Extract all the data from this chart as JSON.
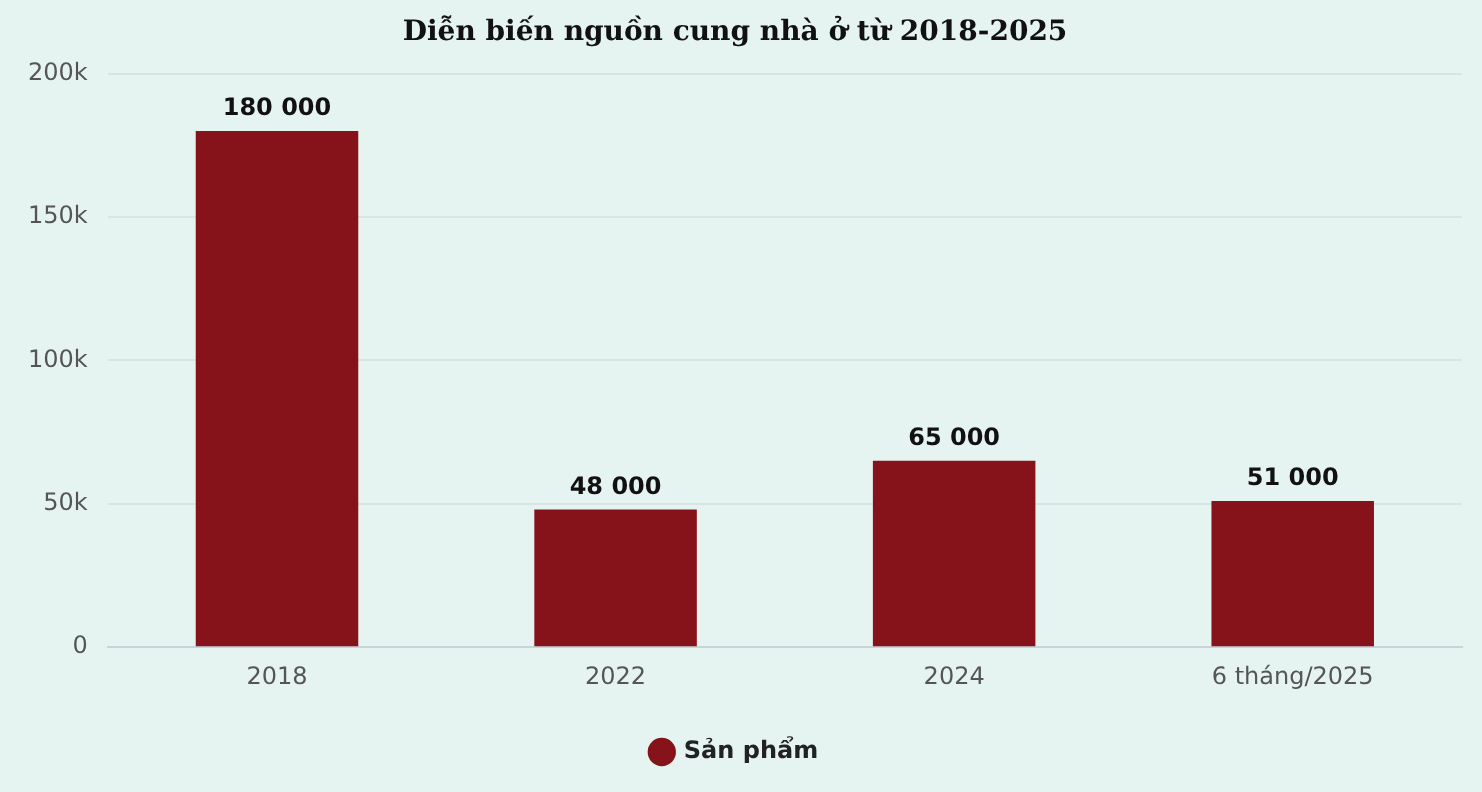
{
  "chart_data": {
    "type": "bar",
    "title": "Diễn biến nguồn cung nhà ở từ 2018-2025",
    "categories": [
      "2018",
      "2022",
      "2024",
      "6 tháng/2025"
    ],
    "series": [
      {
        "name": "Sản phẩm",
        "color": "#86131a",
        "values": [
          180000,
          48000,
          65000,
          51000
        ],
        "value_labels": [
          "180 000",
          "48 000",
          "65 000",
          "51 000"
        ]
      }
    ],
    "ylim": [
      0,
      200000
    ],
    "yticks": [
      {
        "value": 0,
        "label": "0"
      },
      {
        "value": 50000,
        "label": "50k"
      },
      {
        "value": 100000,
        "label": "100k"
      },
      {
        "value": 150000,
        "label": "150k"
      },
      {
        "value": 200000,
        "label": "200k"
      }
    ],
    "grid": "y",
    "legend": "bottom"
  }
}
